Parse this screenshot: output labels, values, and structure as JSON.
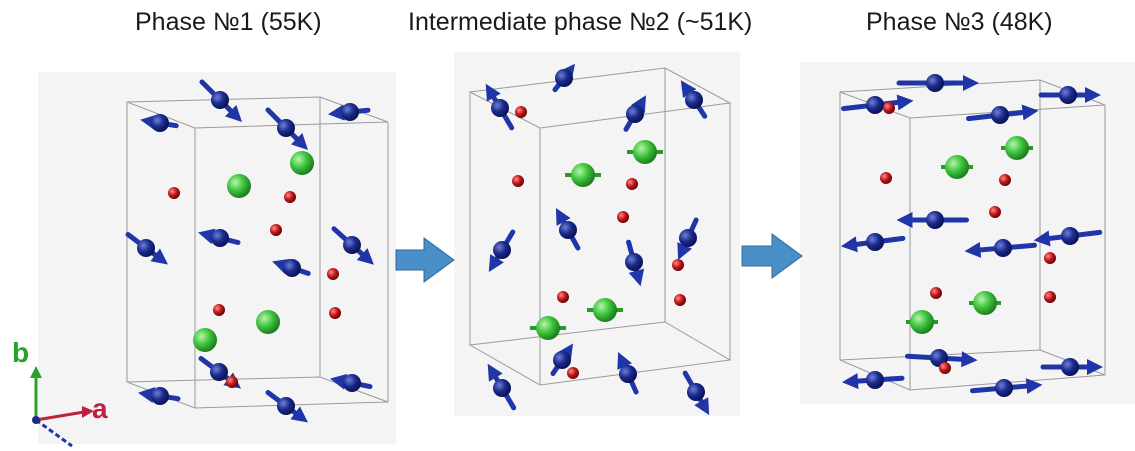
{
  "panels": [
    {
      "title": "Phase №1 (55K)"
    },
    {
      "title": "Intermediate phase №2 (~51K)"
    },
    {
      "title": "Phase №3 (48K)"
    }
  ],
  "axes": {
    "b_label": "b",
    "a_label": "a"
  },
  "colors": {
    "spin_atom": "#1a2a8c",
    "spin_arrow": "#1f35a8",
    "green_atom": "#3cc23c",
    "red_atom": "#c01818",
    "cell_edge": "#9a9a9a",
    "transition_arrow": "#4a8fc8",
    "axis_b": "#2aa12a",
    "axis_a": "#c02040"
  },
  "icons": [
    "transition-arrow-icon",
    "transition-arrow-icon"
  ]
}
